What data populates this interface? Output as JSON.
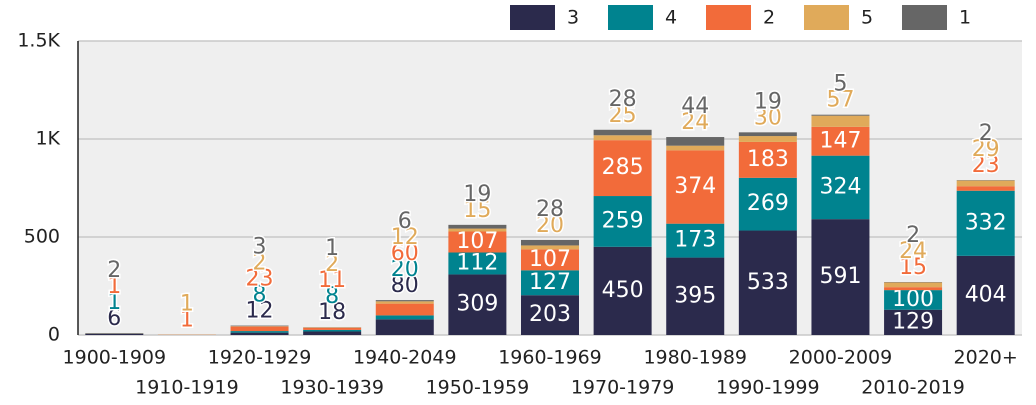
{
  "chart_data": {
    "type": "bar",
    "stacked": true,
    "categories": [
      "1900-1909",
      "1910-1919",
      "1920-1929",
      "1930-1939",
      "1940-2049",
      "1950-1959",
      "1960-1969",
      "1970-1979",
      "1980-1989",
      "1990-1999",
      "2000-2009",
      "2010-2019",
      "2020+"
    ],
    "series": [
      {
        "name": "3",
        "color": "#2b2a4c",
        "values": [
          6,
          0,
          12,
          18,
          80,
          309,
          203,
          450,
          395,
          533,
          591,
          129,
          404
        ]
      },
      {
        "name": "4",
        "color": "#00838f",
        "values": [
          1,
          0,
          8,
          8,
          20,
          112,
          127,
          259,
          173,
          269,
          324,
          100,
          332
        ]
      },
      {
        "name": "2",
        "color": "#f26b3a",
        "values": [
          1,
          1,
          23,
          11,
          60,
          107,
          107,
          285,
          374,
          183,
          147,
          15,
          23
        ]
      },
      {
        "name": "5",
        "color": "#e0aa5a",
        "values": [
          0,
          1,
          2,
          2,
          12,
          15,
          20,
          25,
          24,
          30,
          57,
          24,
          29
        ]
      },
      {
        "name": "1",
        "color": "#666666",
        "values": [
          2,
          0,
          3,
          1,
          6,
          19,
          28,
          28,
          44,
          19,
          5,
          2,
          2
        ]
      }
    ],
    "ylim": [
      0,
      1500
    ],
    "yticks": [
      0,
      500,
      {
        "value": 1000,
        "label": "1K"
      },
      {
        "value": 1500,
        "label": "1.5K"
      }
    ],
    "grid": true,
    "legend": "top-right"
  }
}
